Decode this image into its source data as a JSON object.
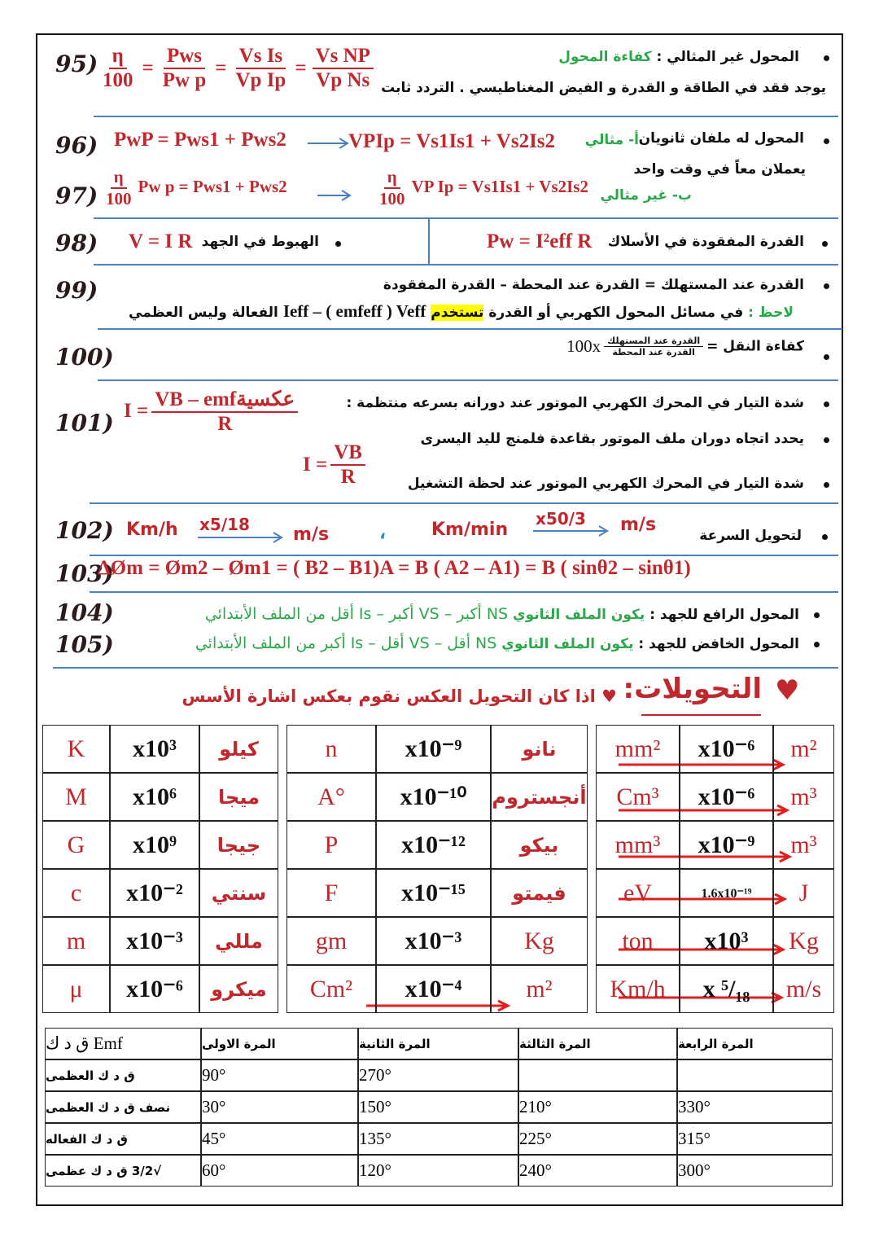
{
  "s95": {
    "num": "95)",
    "label": "المحول غير المثالي :",
    "green": "كفاءة المحول",
    "note": "يوجد فقد في الطاقة و القدرة و الفيض المغناطيسي . التردد ثابت",
    "f": [
      {
        "n": "η",
        "d": "100"
      },
      "=",
      {
        "n": "Pws",
        "d": "Pw p"
      },
      "=",
      {
        "n": "Vs Is",
        "d": "Vp Ip"
      },
      "=",
      {
        "n": "Vs NP",
        "d": "Vp Ns"
      }
    ]
  },
  "s96": {
    "num": "96)",
    "line1": "المحول له ملفان ثانويان",
    "line2": "يعملان معاً في وقت واحد",
    "green": "أ- مثالي",
    "left": "PwP = Pws1 + Pws2",
    "right": "VPIp = Vs1Is1 + Vs2Is2"
  },
  "s97": {
    "num": "97)",
    "green": "ب- غير مثالي",
    "frac1": {
      "n": "η",
      "d": "100"
    },
    "left": "Pw p = Pws1 + Pws2",
    "frac2": {
      "n": "η",
      "d": "100"
    },
    "right": "VP Ip = Vs1Is1 + Vs2Is2"
  },
  "s98": {
    "num": "98)",
    "leftLabel": "الهبوط في الجهد",
    "leftFormula": "V = I R",
    "rightLabel": "القدرة المفقودة في الأسلاك",
    "rightFormula": "Pw = I²eff R"
  },
  "s99": {
    "num": "99)",
    "line1": "القدرة عند المستهلك = القدرة عند المحطة – القدرة المفقودة",
    "note": "لاحظ :",
    "text": "في مسائل  المحول الكهربي أو القدرة",
    "highlight": "تستخدم",
    "formula": "Ieff – ( emfeff ) Veff",
    "rest": "الفعالة  وليس العظمي"
  },
  "s100": {
    "num": "100)",
    "label": "كفاءة النقل =",
    "n": "القدرة عند المستهلك",
    "d": "القدرة عند المحطة",
    "factor": "100x"
  },
  "s101": {
    "num": "101)",
    "line1": "شدة التيار في المحرك الكهربي الموتور عند دورانه بسرعه منتظمة :",
    "line2": "يحدد اتجاه دوران ملف الموتور بقاعدة فلمنج لليد اليسرى",
    "line3": "شدة التيار في المحرك الكهربي الموتور عند لحظة التشغيل",
    "f1lhs": "I =",
    "f1n": "VB – emfعكسية",
    "f1d": "R",
    "f2lhs": "I =",
    "f2n": "VB",
    "f2d": "R"
  },
  "s102": {
    "num": "102)",
    "label": "لتحويل السرعة",
    "a1": "Km/h",
    "op1": "x5/18",
    "b1": "m/s",
    "sep": "،",
    "a2": "Km/min",
    "op2": "x50/3",
    "b2": "m/s"
  },
  "s103": {
    "num": "103)",
    "formula": "ΔØm = Øm2 – Øm1 = ( B2 – B1)A = B ( A2 – A1) = B ( sinθ2 – sinθ1)"
  },
  "s104": {
    "num": "104)",
    "label": "المحول الرافع للجهد :",
    "green": "يكون الملف الثانوي",
    "rest": "NS أكبر – VS أكبر – Is أقل من الملف الأبتدائي"
  },
  "s105": {
    "num": "105)",
    "label": "المحول الخافض للجهد :",
    "green": "يكون الملف الثانوي",
    "rest": "NS أقل – VS أقل – Is أكبر من الملف الأبتدائي"
  },
  "heading": {
    "heart": "♥",
    "title": "التحويلات:",
    "note": "♥ اذا كان التحويل العكس نقوم بعكس اشارة الأسس"
  },
  "tables": [
    [
      [
        "K",
        "x10³",
        "كيلو"
      ],
      [
        "M",
        "x10⁶",
        "ميجا"
      ],
      [
        "G",
        "x10⁹",
        "جيجا"
      ],
      [
        "c",
        "x10⁻²",
        "سنتي"
      ],
      [
        "m",
        "x10⁻³",
        "مللي"
      ],
      [
        "μ",
        "x10⁻⁶",
        "ميكرو"
      ]
    ],
    [
      [
        "n",
        "x10⁻⁹",
        "نانو"
      ],
      [
        "A°",
        "x10⁻¹⁰",
        "أنجستروم"
      ],
      [
        "P",
        "x10⁻¹²",
        "بيكو"
      ],
      [
        "F",
        "x10⁻¹⁵",
        "فيمتو"
      ],
      [
        "gm",
        "x10⁻³",
        "Kg"
      ],
      [
        "Cm²",
        "x10⁻⁴",
        "m²"
      ]
    ],
    [
      [
        "mm²",
        "x10⁻⁶",
        "m²"
      ],
      [
        "Cm³",
        "x10⁻⁶",
        "m³"
      ],
      [
        "mm³",
        "x10⁻⁹",
        "m³"
      ],
      [
        "eV",
        "1.6x10⁻¹⁹",
        "J"
      ],
      [
        "ton",
        "x10³",
        "Kg"
      ],
      [
        "Km/h",
        "x ⁵/₁₈",
        "m/s"
      ]
    ]
  ],
  "angles": {
    "header": [
      "Emf ق د ك",
      "المرة الاولى",
      "المرة الثانية",
      "المرة الثالثة",
      "المرة الرابعة"
    ],
    "rows": [
      [
        "ق د ك العظمى",
        "90°",
        "270°",
        null,
        null
      ],
      [
        "نصف ق د ك العظمى",
        "30°",
        "150°",
        "210°",
        "330°"
      ],
      [
        "ق د ك الفعاله",
        "45°",
        "135°",
        "225°",
        "315°"
      ],
      [
        "√3/2 ق د ك عظمى",
        "60°",
        "120°",
        "240°",
        "300°"
      ]
    ]
  }
}
